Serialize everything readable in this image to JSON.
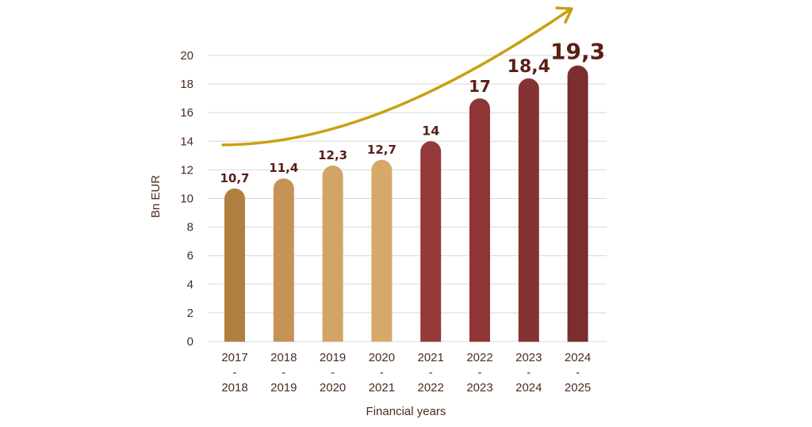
{
  "chart_data": {
    "type": "bar",
    "categories": [
      [
        "2017",
        "-",
        "2018"
      ],
      [
        "2018",
        "-",
        "2019"
      ],
      [
        "2019",
        "-",
        "2020"
      ],
      [
        "2020",
        "-",
        "2021"
      ],
      [
        "2021",
        "-",
        "2022"
      ],
      [
        "2022",
        "-",
        "2023"
      ],
      [
        "2023",
        "-",
        "2024"
      ],
      [
        "2024",
        "-",
        "2025"
      ]
    ],
    "values": [
      10.7,
      11.4,
      12.3,
      12.7,
      14,
      17,
      18.4,
      19.3
    ],
    "value_labels": [
      "10,7",
      "11,4",
      "12,3",
      "12,7",
      "14",
      "17",
      "18,4",
      "19,3"
    ],
    "bar_colors": [
      "#b08040",
      "#c49355",
      "#d2a465",
      "#d6a96b",
      "#943a3a",
      "#903535",
      "#853232",
      "#7a2e2e"
    ],
    "title": "",
    "xlabel": "Financial years",
    "ylabel": "Bn EUR",
    "ylim": [
      0,
      20
    ],
    "yticks": [
      0,
      2,
      4,
      6,
      8,
      10,
      12,
      14,
      16,
      18,
      20
    ],
    "grid": true,
    "trend_arrow_color": "#c9a012"
  }
}
